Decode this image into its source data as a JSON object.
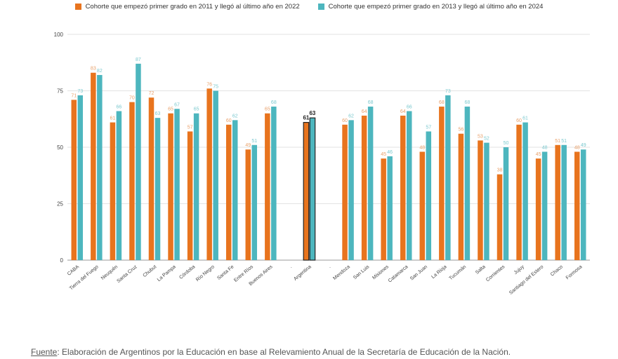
{
  "legend": [
    {
      "label": "Cohorte que empezó primer grado en 2011 y llegó al último año en 2022",
      "color": "#E8741E"
    },
    {
      "label": "Cohorte que empezó primer grado en 2013 y llegó al último año en 2024",
      "color": "#4DB6BE"
    }
  ],
  "source": {
    "label": "Fuente",
    "text": ": Elaboración de Argentinos por la Educación en base al Relevamiento Anual de la Secretaría de Educación de la Nación."
  },
  "chart_data": {
    "type": "bar",
    "ylim": [
      0,
      100
    ],
    "yticks": [
      0,
      25,
      50,
      75,
      100
    ],
    "grid": true,
    "legend_position": "top",
    "categories": [
      "CABA",
      "Tierra del Fuego",
      "Neuquén",
      "Santa Cruz",
      "Chubut",
      "La Pampa",
      "Córdoba",
      "Río Negro",
      "Santa Fe",
      "Entre Ríos",
      "Buenos Aires",
      ".",
      "Argentina",
      ".",
      "Mendoza",
      "San Luis",
      "Misiones",
      "Catamarca",
      "San Juan",
      "La Rioja",
      "Tucumán",
      "Salta",
      "Corrientes",
      "Jujuy",
      "Santiago del Estero",
      "Chaco",
      "Formosa"
    ],
    "series": [
      {
        "name": "Cohorte que empezó primer grado en 2011 y llegó al último año en 2022",
        "color": "#E8741E",
        "highlight_color": "#E8741E",
        "values": [
          71,
          83,
          61,
          70,
          72,
          65,
          57,
          76,
          60,
          49,
          65,
          null,
          61,
          null,
          60,
          64,
          45,
          64,
          48,
          68,
          56,
          53,
          38,
          60,
          45,
          51,
          48
        ]
      },
      {
        "name": "Cohorte que empezó primer grado en 2013 y llegó al último año en 2024",
        "color": "#4DB6BE",
        "highlight_color": "#4DB6BE",
        "values": [
          73,
          82,
          66,
          87,
          63,
          67,
          65,
          75,
          62,
          51,
          68,
          null,
          63,
          null,
          62,
          68,
          46,
          66,
          57,
          73,
          68,
          52,
          50,
          61,
          48,
          51,
          49
        ]
      }
    ],
    "highlight_category": "Argentina"
  }
}
